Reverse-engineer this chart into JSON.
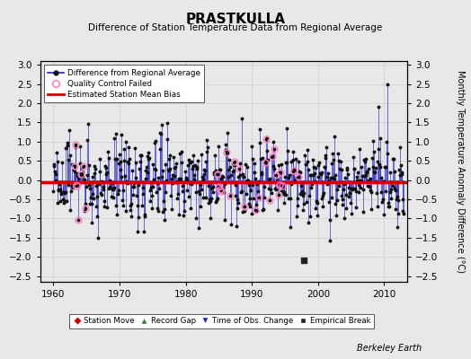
{
  "title": "PRASTKULLA",
  "subtitle": "Difference of Station Temperature Data from Regional Average",
  "ylabel": "Monthly Temperature Anomaly Difference (°C)",
  "xlim": [
    1958,
    2013.5
  ],
  "ylim": [
    -2.65,
    3.1
  ],
  "yticks_left": [
    -2.5,
    -2,
    -1.5,
    -1,
    -0.5,
    0,
    0.5,
    1,
    1.5,
    2,
    2.5,
    3
  ],
  "yticks_right": [
    -2.5,
    -2,
    -1.5,
    -1,
    -0.5,
    0,
    0.5,
    1,
    1.5,
    2,
    2.5,
    3
  ],
  "xticks": [
    1960,
    1970,
    1980,
    1990,
    2000,
    2010
  ],
  "bias_line_y": -0.05,
  "background_color": "#e8e8e8",
  "plot_bg_color": "#e8e8e8",
  "line_color": "#2222cc",
  "dot_color": "#111111",
  "bias_color": "#cc0000",
  "qc_color": "#ff80c0",
  "station_move_color": "#cc0000",
  "record_gap_color": "#228822",
  "obs_change_color": "#2222cc",
  "empirical_color": "#222222",
  "watermark": "Berkeley Earth",
  "seed": 42
}
